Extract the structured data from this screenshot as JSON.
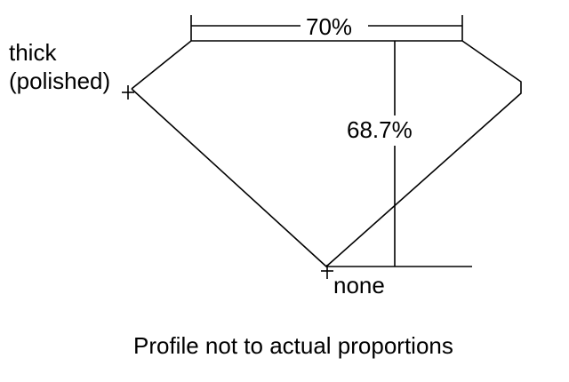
{
  "diagram": {
    "table_label": "70%",
    "depth_label": "68.7%",
    "girdle_label_line1": "thick",
    "girdle_label_line2": "(polished)",
    "culet_label": "none",
    "caption": "Profile not to actual proportions",
    "line_color": "#000000",
    "background": "#ffffff"
  }
}
